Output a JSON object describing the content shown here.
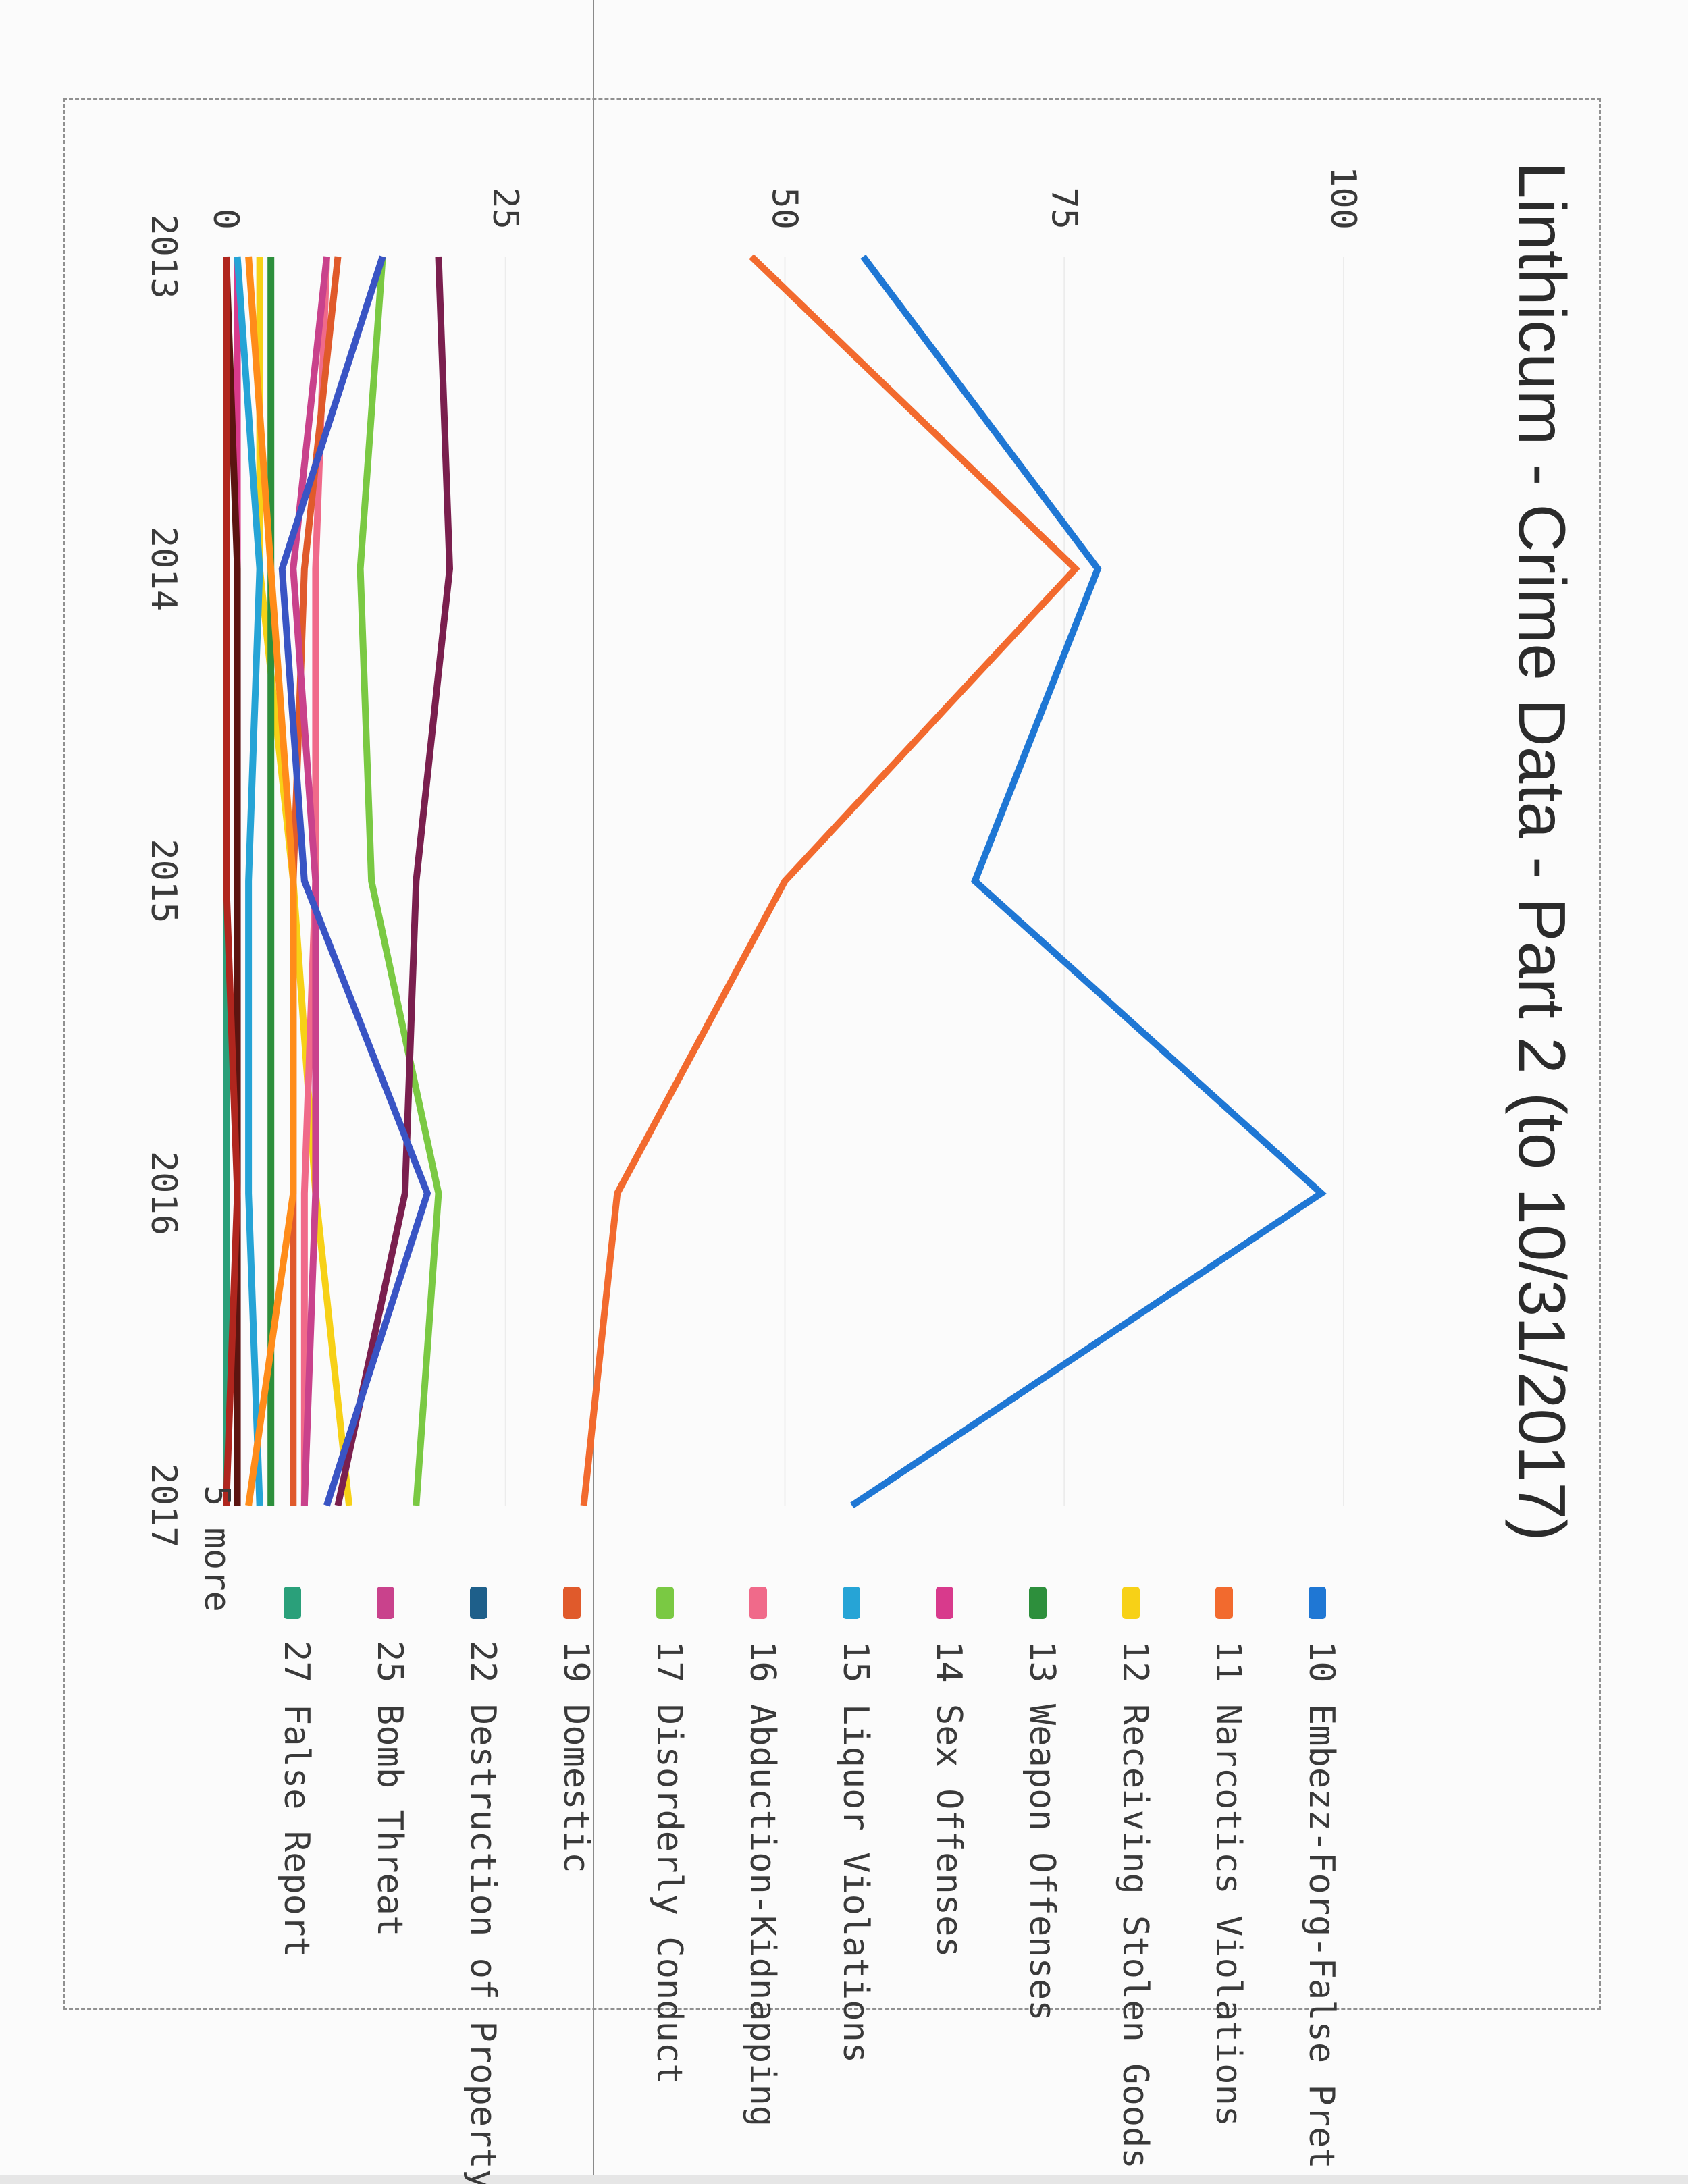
{
  "chart_data": {
    "type": "line",
    "title": "Linthicum - Crime Data - Part 2 (to 10/31/2017)",
    "xlabel": "",
    "ylabel": "",
    "x": [
      "2013",
      "2014",
      "2015",
      "2016",
      "2017"
    ],
    "ylim": [
      0,
      100
    ],
    "yticks": [
      "0",
      "25",
      "50",
      "75",
      "100"
    ],
    "grid": "horizontal",
    "legend_position": "right",
    "legend_more": "5 more",
    "series": [
      {
        "name": "10 Embezz-Forg-False Pret",
        "color": "#1f77d4",
        "values": [
          57,
          78,
          67,
          98,
          56
        ],
        "rank": 0
      },
      {
        "name": "11 Narcotics Violations",
        "color": "#f26a2e",
        "values": [
          47,
          76,
          50,
          35,
          32
        ],
        "rank": 1
      },
      {
        "name": "12 Receiving Stolen Goods",
        "color": "#f7d117",
        "values": [
          3,
          3,
          6,
          8,
          11
        ],
        "rank": 2
      },
      {
        "name": "13 Weapon Offenses",
        "color": "#2d8f3c",
        "values": [
          4,
          4,
          4,
          4,
          4
        ],
        "rank": 3
      },
      {
        "name": "14 Sex Offenses",
        "color": "#d83a8c",
        "values": [
          1,
          1,
          1,
          1,
          1
        ],
        "rank": 4
      },
      {
        "name": "15 Liquor Violations",
        "color": "#26a4d6",
        "values": [
          1,
          3,
          2,
          2,
          3
        ],
        "rank": 5
      },
      {
        "name": "16 Abduction-Kidnapping",
        "color": "#f06a8a",
        "values": [
          9,
          8,
          8,
          7,
          7
        ],
        "rank": 6
      },
      {
        "name": "17 Disorderly Conduct",
        "color": "#7ac943",
        "values": [
          14,
          12,
          13,
          19,
          17
        ],
        "rank": 7
      },
      {
        "name": "19 Domestic",
        "color": "#e05a2b",
        "values": [
          10,
          7,
          6,
          6,
          6
        ],
        "rank": 8
      },
      {
        "name": "22 Destruction of Property",
        "color": "#1e5f8a",
        "values": [
          0,
          0,
          0,
          0,
          0
        ],
        "rank": 9
      },
      {
        "name": "25 Bomb Threat",
        "color": "#c9428c",
        "values": [
          9,
          6,
          8,
          8,
          7
        ],
        "rank": 10
      },
      {
        "name": "27 False Report",
        "color": "#2aa07a",
        "values": [
          0,
          0,
          0,
          0,
          0
        ],
        "rank": 11
      },
      {
        "name": "",
        "color": "#7a1f4e",
        "values": [
          19,
          20,
          17,
          16,
          10
        ],
        "rank": 12
      },
      {
        "name": "",
        "color": "#3954c4",
        "values": [
          14,
          5,
          7,
          18,
          9
        ],
        "rank": 13
      },
      {
        "name": "",
        "color": "#ff8c1a",
        "values": [
          2,
          4,
          6,
          6,
          2
        ],
        "rank": 14
      },
      {
        "name": "",
        "color": "#5b1410",
        "values": [
          0,
          1,
          1,
          1,
          1
        ],
        "rank": 15
      },
      {
        "name": "",
        "color": "#b0261e",
        "values": [
          0,
          0,
          0,
          1,
          0
        ],
        "rank": 16
      }
    ]
  }
}
